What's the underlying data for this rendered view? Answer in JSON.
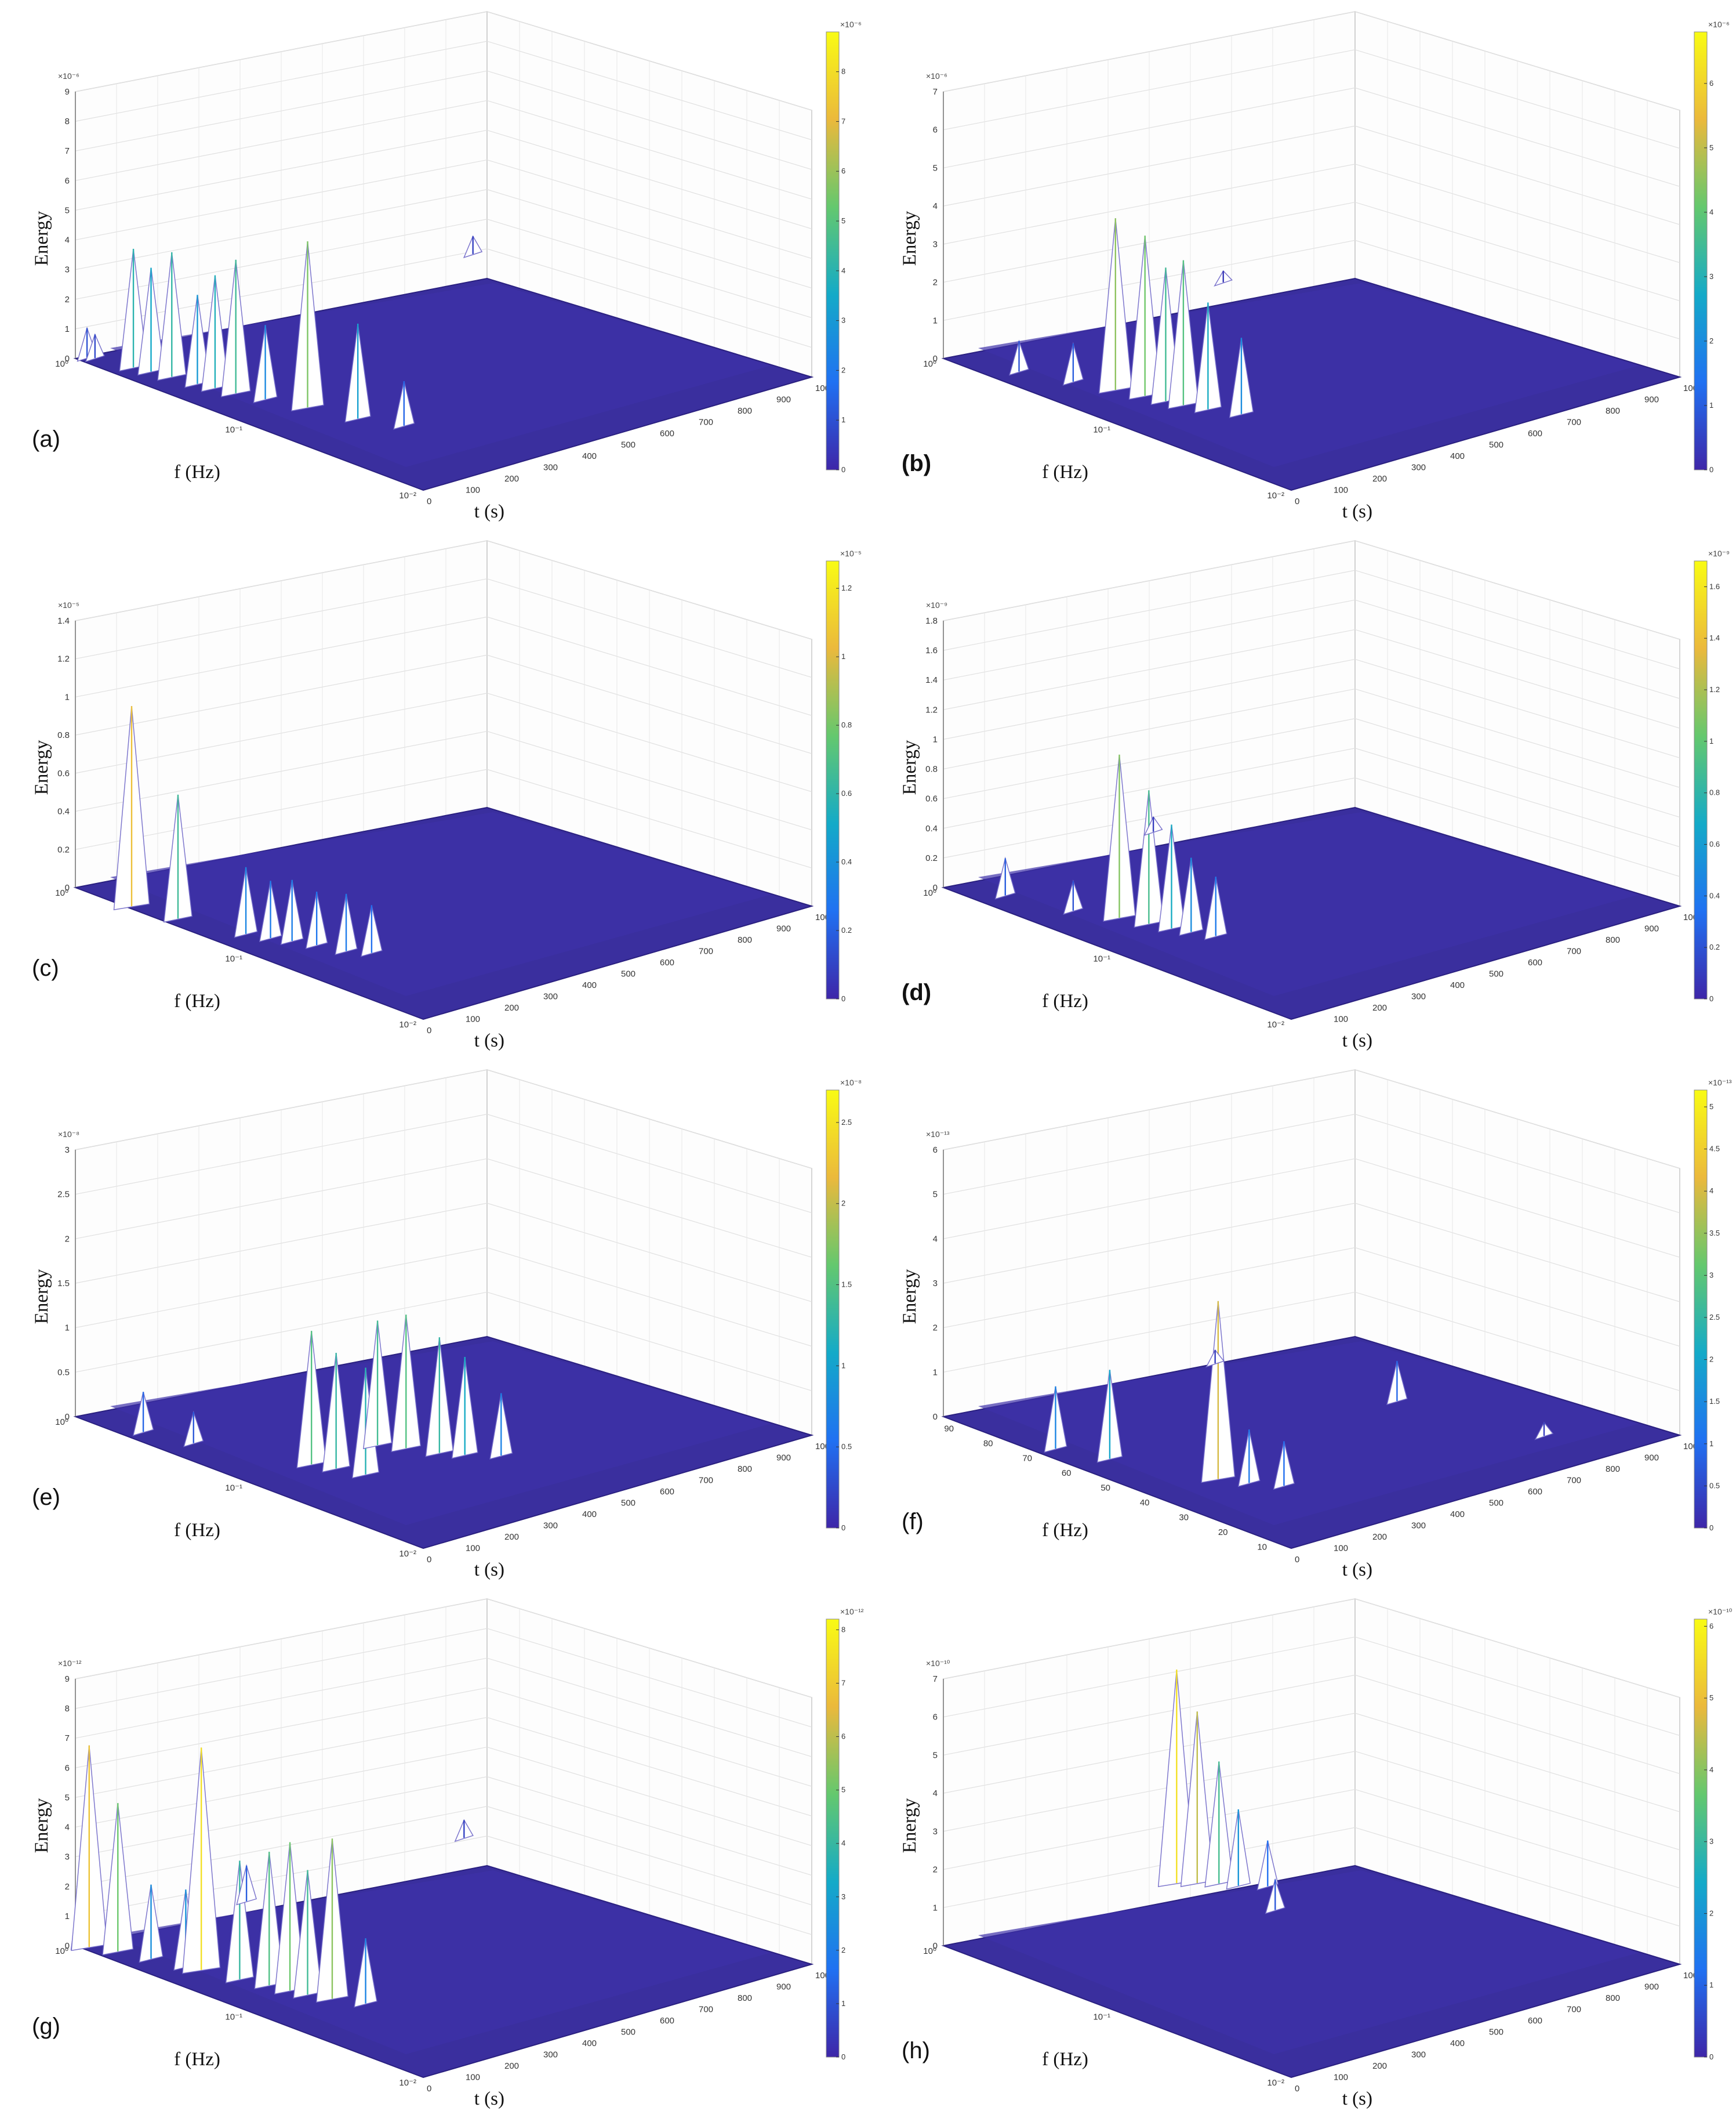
{
  "chart_data": [
    {
      "type": "surface3d",
      "label": "(a)",
      "label_bold": false,
      "zlabel": "Energy",
      "xlabel": "f (Hz)",
      "ylabel": "t (s)",
      "z_multiplier": "×10⁻⁶",
      "z_ticks": [
        "0",
        "1",
        "2",
        "3",
        "4",
        "5",
        "6",
        "7",
        "8",
        "9"
      ],
      "zlim": [
        0,
        9
      ],
      "f_ticks": [
        "10⁰",
        "10⁻¹",
        "10⁻²"
      ],
      "t_ticks": [
        "0",
        "100",
        "200",
        "300",
        "400",
        "500",
        "600",
        "700",
        "800",
        "900",
        "1000"
      ],
      "colorbar_multiplier": "×10⁻⁶",
      "colorbar_ticks": [
        "0",
        "1",
        "2",
        "3",
        "4",
        "5",
        "6",
        "7",
        "8"
      ],
      "colorbar_max": 8.8,
      "peaks": [
        {
          "f": 0.95,
          "t": 20,
          "z": 1.0
        },
        {
          "f": 0.9,
          "t": 30,
          "z": 0.8
        },
        {
          "f": 0.6,
          "t": 50,
          "z": 4.0
        },
        {
          "f": 0.5,
          "t": 60,
          "z": 3.5
        },
        {
          "f": 0.4,
          "t": 70,
          "z": 4.2
        },
        {
          "f": 0.3,
          "t": 80,
          "z": 3.0
        },
        {
          "f": 0.25,
          "t": 90,
          "z": 3.8
        },
        {
          "f": 0.2,
          "t": 100,
          "z": 4.5
        },
        {
          "f": 0.15,
          "t": 120,
          "z": 2.5
        },
        {
          "f": 0.1,
          "t": 150,
          "z": 5.6
        },
        {
          "f": 0.06,
          "t": 180,
          "z": 3.2
        },
        {
          "f": 0.04,
          "t": 220,
          "z": 1.5
        },
        {
          "f": 0.8,
          "t": 980,
          "z": 0.6
        }
      ]
    },
    {
      "type": "surface3d",
      "label": "(b)",
      "label_bold": true,
      "zlabel": "Energy",
      "xlabel": "f (Hz)",
      "ylabel": "t (s)",
      "z_multiplier": "×10⁻⁶",
      "z_ticks": [
        "0",
        "1",
        "2",
        "3",
        "4",
        "5",
        "6",
        "7"
      ],
      "zlim": [
        0,
        7
      ],
      "f_ticks": [
        "10⁰",
        "10⁻¹",
        "10⁻²"
      ],
      "t_ticks": [
        "0",
        "100",
        "200",
        "300",
        "400",
        "500",
        "600",
        "700",
        "800",
        "900",
        "1000"
      ],
      "colorbar_multiplier": "×10⁻⁶",
      "colorbar_ticks": [
        "0",
        "1",
        "2",
        "3",
        "4",
        "5",
        "6"
      ],
      "colorbar_max": 6.8,
      "peaks": [
        {
          "f": 0.5,
          "t": 60,
          "z": 0.8
        },
        {
          "f": 0.3,
          "t": 100,
          "z": 1.0
        },
        {
          "f": 0.2,
          "t": 130,
          "z": 4.5
        },
        {
          "f": 0.15,
          "t": 150,
          "z": 4.2
        },
        {
          "f": 0.12,
          "t": 160,
          "z": 3.5
        },
        {
          "f": 0.1,
          "t": 170,
          "z": 3.8
        },
        {
          "f": 0.08,
          "t": 190,
          "z": 2.8
        },
        {
          "f": 0.06,
          "t": 220,
          "z": 2.0
        },
        {
          "f": 0.9,
          "t": 700,
          "z": 0.3
        }
      ]
    },
    {
      "type": "surface3d",
      "label": "(c)",
      "label_bold": false,
      "zlabel": "Energy",
      "xlabel": "f (Hz)",
      "ylabel": "t (s)",
      "z_multiplier": "×10⁻⁵",
      "z_ticks": [
        "0",
        "0.2",
        "0.4",
        "0.6",
        "0.8",
        "1",
        "1.2",
        "1.4"
      ],
      "zlim": [
        0,
        1.4
      ],
      "f_ticks": [
        "10⁰",
        "10⁻¹",
        "10⁻²"
      ],
      "t_ticks": [
        "0",
        "100",
        "200",
        "300",
        "400",
        "500",
        "600",
        "700",
        "800",
        "900",
        "1000"
      ],
      "colorbar_multiplier": "×10⁻⁵",
      "colorbar_ticks": [
        "0",
        "0.2",
        "0.4",
        "0.6",
        "0.8",
        "1",
        "1.2"
      ],
      "colorbar_max": 1.28,
      "peaks": [
        {
          "f": 0.5,
          "t": 10,
          "z": 1.05
        },
        {
          "f": 0.3,
          "t": 30,
          "z": 0.65
        },
        {
          "f": 0.15,
          "t": 70,
          "z": 0.35
        },
        {
          "f": 0.12,
          "t": 90,
          "z": 0.3
        },
        {
          "f": 0.1,
          "t": 110,
          "z": 0.32
        },
        {
          "f": 0.08,
          "t": 130,
          "z": 0.28
        },
        {
          "f": 0.06,
          "t": 150,
          "z": 0.3
        },
        {
          "f": 0.05,
          "t": 180,
          "z": 0.25
        }
      ]
    },
    {
      "type": "surface3d",
      "label": "(d)",
      "label_bold": true,
      "zlabel": "Energy",
      "xlabel": "f (Hz)",
      "ylabel": "t (s)",
      "z_multiplier": "×10⁻⁹",
      "z_ticks": [
        "0",
        "0.2",
        "0.4",
        "0.6",
        "0.8",
        "1",
        "1.2",
        "1.4",
        "1.6",
        "1.8"
      ],
      "zlim": [
        0,
        1.8
      ],
      "f_ticks": [
        "10⁰",
        "10⁻¹",
        "10⁻²"
      ],
      "t_ticks": [
        "100",
        "200",
        "300",
        "400",
        "500",
        "600",
        "700",
        "800",
        "900",
        "1000"
      ],
      "colorbar_multiplier": "×10⁻⁹",
      "colorbar_ticks": [
        "0",
        "0.2",
        "0.4",
        "0.6",
        "0.8",
        "1",
        "1.2",
        "1.4",
        "1.6"
      ],
      "colorbar_max": 1.7,
      "peaks": [
        {
          "f": 0.6,
          "t": 60,
          "z": 0.25
        },
        {
          "f": 0.3,
          "t": 100,
          "z": 0.2
        },
        {
          "f": 0.2,
          "t": 140,
          "z": 1.1
        },
        {
          "f": 0.15,
          "t": 160,
          "z": 0.9
        },
        {
          "f": 0.12,
          "t": 175,
          "z": 0.7
        },
        {
          "f": 0.1,
          "t": 190,
          "z": 0.5
        },
        {
          "f": 0.08,
          "t": 210,
          "z": 0.4
        },
        {
          "f": 0.9,
          "t": 520,
          "z": 0.1
        }
      ]
    },
    {
      "type": "surface3d",
      "label": "(e)",
      "label_bold": false,
      "zlabel": "Energy",
      "xlabel": "f (Hz)",
      "ylabel": "t (s)",
      "z_multiplier": "×10⁻⁸",
      "z_ticks": [
        "0",
        "0.5",
        "1",
        "1.5",
        "2",
        "2.5",
        "3"
      ],
      "zlim": [
        0,
        3
      ],
      "f_ticks": [
        "10⁰",
        "10⁻¹",
        "10⁻²"
      ],
      "t_ticks": [
        "0",
        "100",
        "200",
        "300",
        "400",
        "500",
        "600",
        "700",
        "800",
        "900",
        "1000"
      ],
      "colorbar_multiplier": "×10⁻⁸",
      "colorbar_ticks": [
        "0",
        "0.5",
        "1",
        "1.5",
        "2",
        "2.5"
      ],
      "colorbar_max": 2.7,
      "peaks": [
        {
          "f": 0.5,
          "t": 40,
          "z": 0.45
        },
        {
          "f": 0.3,
          "t": 70,
          "z": 0.35
        },
        {
          "f": 0.1,
          "t": 160,
          "z": 1.5
        },
        {
          "f": 0.08,
          "t": 180,
          "z": 1.3
        },
        {
          "f": 0.06,
          "t": 200,
          "z": 1.2
        },
        {
          "f": 0.1,
          "t": 330,
          "z": 1.4
        },
        {
          "f": 0.08,
          "t": 360,
          "z": 1.5
        },
        {
          "f": 0.06,
          "t": 390,
          "z": 1.3
        },
        {
          "f": 0.05,
          "t": 420,
          "z": 1.1
        },
        {
          "f": 0.04,
          "t": 470,
          "z": 0.7
        }
      ]
    },
    {
      "type": "surface3d",
      "label": "(f)",
      "label_bold": false,
      "zlabel": "Energy",
      "xlabel": "f (Hz)",
      "ylabel": "t (s)",
      "z_multiplier": "×10⁻¹³",
      "z_ticks": [
        "0",
        "1",
        "2",
        "3",
        "4",
        "5",
        "6"
      ],
      "zlim": [
        0,
        6
      ],
      "f_ticks": [
        "90",
        "80",
        "70",
        "60",
        "50",
        "40",
        "30",
        "20",
        "10"
      ],
      "t_ticks": [
        "0",
        "100",
        "200",
        "300",
        "400",
        "500",
        "600",
        "700",
        "800",
        "900",
        "1000"
      ],
      "colorbar_multiplier": "×10⁻¹³",
      "colorbar_ticks": [
        "0",
        "0.5",
        "1",
        "1.5",
        "2",
        "2.5",
        "3",
        "3.5",
        "4",
        "4.5",
        "5"
      ],
      "colorbar_max": 5.2,
      "peaks": [
        {
          "f": 70,
          "t": 40,
          "z": 1.4
        },
        {
          "f": 60,
          "t": 80,
          "z": 2.0
        },
        {
          "f": 40,
          "t": 160,
          "z": 4.0
        },
        {
          "f": 35,
          "t": 190,
          "z": 1.2
        },
        {
          "f": 30,
          "t": 230,
          "z": 1.0
        },
        {
          "f": 85,
          "t": 600,
          "z": 0.3
        },
        {
          "f": 50,
          "t": 720,
          "z": 0.9
        },
        {
          "f": 20,
          "t": 800,
          "z": 0.3
        }
      ]
    },
    {
      "type": "surface3d",
      "label": "(g)",
      "label_bold": false,
      "zlabel": "Energy",
      "xlabel": "f (Hz)",
      "ylabel": "t (s)",
      "z_multiplier": "×10⁻¹²",
      "z_ticks": [
        "0",
        "1",
        "2",
        "3",
        "4",
        "5",
        "6",
        "7",
        "8",
        "9"
      ],
      "zlim": [
        0,
        9
      ],
      "f_ticks": [
        "10⁰",
        "10⁻¹",
        "10⁻²"
      ],
      "t_ticks": [
        "0",
        "100",
        "200",
        "300",
        "400",
        "500",
        "600",
        "700",
        "800",
        "900",
        "1000"
      ],
      "colorbar_multiplier": "×10⁻¹²",
      "colorbar_ticks": [
        "0",
        "1",
        "2",
        "3",
        "4",
        "5",
        "6",
        "7",
        "8"
      ],
      "colorbar_max": 8.2,
      "peaks": [
        {
          "f": 0.95,
          "t": 10,
          "z": 2.8
        },
        {
          "f": 0.9,
          "t": 15,
          "z": 6.8
        },
        {
          "f": 0.7,
          "t": 40,
          "z": 5.0
        },
        {
          "f": 0.5,
          "t": 60,
          "z": 2.5
        },
        {
          "f": 0.35,
          "t": 80,
          "z": 2.6
        },
        {
          "f": 0.3,
          "t": 90,
          "z": 7.5
        },
        {
          "f": 0.2,
          "t": 110,
          "z": 4.0
        },
        {
          "f": 0.15,
          "t": 130,
          "z": 4.5
        },
        {
          "f": 0.12,
          "t": 140,
          "z": 5.0
        },
        {
          "f": 0.1,
          "t": 150,
          "z": 4.2
        },
        {
          "f": 0.08,
          "t": 170,
          "z": 5.4
        },
        {
          "f": 0.06,
          "t": 200,
          "z": 2.2
        },
        {
          "f": 0.9,
          "t": 420,
          "z": 1.2
        },
        {
          "f": 0.9,
          "t": 980,
          "z": 0.6
        }
      ]
    },
    {
      "type": "surface3d",
      "label": "(h)",
      "label_bold": false,
      "zlabel": "Energy",
      "xlabel": "f (Hz)",
      "ylabel": "t (s)",
      "z_multiplier": "×10⁻¹⁰",
      "z_ticks": [
        "0",
        "1",
        "2",
        "3",
        "4",
        "5",
        "6",
        "7"
      ],
      "zlim": [
        0,
        7
      ],
      "f_ticks": [
        "10⁰",
        "10⁻¹",
        "10⁻²"
      ],
      "t_ticks": [
        "0",
        "100",
        "200",
        "300",
        "400",
        "500",
        "600",
        "700",
        "800",
        "900",
        "1000"
      ],
      "colorbar_multiplier": "×10⁻¹⁰",
      "colorbar_ticks": [
        "0",
        "1",
        "2",
        "3",
        "4",
        "5",
        "6"
      ],
      "colorbar_max": 6.1,
      "peaks": [
        {
          "f": 0.9,
          "t": 580,
          "z": 5.6
        },
        {
          "f": 0.8,
          "t": 610,
          "z": 4.5
        },
        {
          "f": 0.7,
          "t": 640,
          "z": 3.2
        },
        {
          "f": 0.6,
          "t": 660,
          "z": 2.0
        },
        {
          "f": 0.5,
          "t": 700,
          "z": 1.2
        },
        {
          "f": 0.3,
          "t": 620,
          "z": 0.8
        }
      ]
    }
  ]
}
